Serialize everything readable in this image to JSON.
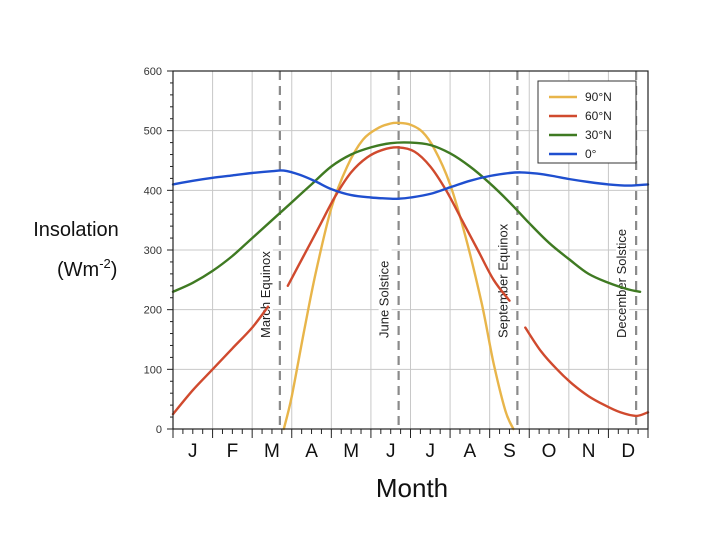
{
  "chart_data": {
    "type": "line",
    "title": "",
    "xlabel": "Month",
    "ylabel": "Insolation",
    "ylabel_units": "(Wm",
    "ylabel_units_exp": "-2",
    "ylabel_units_close": ")",
    "ylim": [
      0,
      600
    ],
    "yticks": [
      "0",
      "100",
      "200",
      "300",
      "400",
      "500",
      "600"
    ],
    "months": [
      "J",
      "F",
      "M",
      "A",
      "M",
      "J",
      "J",
      "A",
      "S",
      "O",
      "N",
      "D"
    ],
    "grid": true,
    "events": [
      {
        "label": "March Equinox",
        "month": 2.7
      },
      {
        "label": "June Solstice",
        "month": 5.7
      },
      {
        "label": "September Equinox",
        "month": 8.7
      },
      {
        "label": "December Solstice",
        "month": 11.7
      }
    ],
    "series": [
      {
        "name": "90°N",
        "color": "#e8b54a",
        "x": [
          2.8,
          3.0,
          3.3,
          3.6,
          4.0,
          4.4,
          4.8,
          5.2,
          5.5,
          5.7,
          6.0,
          6.3,
          6.6,
          7.0,
          7.4,
          7.8,
          8.1,
          8.4,
          8.6
        ],
        "y": [
          0,
          55,
          160,
          260,
          370,
          440,
          485,
          505,
          512,
          513,
          510,
          498,
          470,
          410,
          320,
          210,
          110,
          30,
          0
        ]
      },
      {
        "name": "60°N",
        "color": "#d04a2e",
        "x": [
          0,
          0.5,
          1.0,
          1.5,
          2.0,
          2.4,
          2.9,
          3.3,
          3.7,
          4.1,
          4.5,
          4.9,
          5.3,
          5.7,
          6.1,
          6.5,
          6.9,
          7.3,
          7.7,
          8.1,
          8.5,
          8.9,
          9.3,
          9.7,
          10.1,
          10.5,
          10.9,
          11.3,
          11.7,
          12.0
        ],
        "y": [
          25,
          65,
          100,
          135,
          170,
          205,
          240,
          290,
          340,
          390,
          430,
          455,
          468,
          472,
          465,
          440,
          400,
          350,
          300,
          250,
          215,
          170,
          130,
          100,
          75,
          55,
          40,
          28,
          22,
          28
        ],
        "gaps": [
          [
            2.45,
            2.85
          ],
          [
            8.5,
            8.85
          ]
        ]
      },
      {
        "name": "30°N",
        "color": "#3f7a22",
        "x": [
          0,
          0.5,
          1.0,
          1.5,
          2.0,
          2.5,
          3.0,
          3.5,
          4.0,
          4.5,
          5.0,
          5.5,
          6.0,
          6.5,
          7.0,
          7.5,
          8.0,
          8.5,
          9.0,
          9.5,
          10.0,
          10.5,
          11.0,
          11.5,
          11.8
        ],
        "y": [
          230,
          245,
          265,
          290,
          320,
          350,
          380,
          410,
          440,
          460,
          472,
          479,
          480,
          476,
          462,
          440,
          412,
          380,
          345,
          312,
          285,
          260,
          245,
          234,
          230
        ]
      },
      {
        "name": "0°",
        "color": "#1f4fcf",
        "x": [
          0,
          0.5,
          1.0,
          1.5,
          2.0,
          2.5,
          2.8,
          3.2,
          3.6,
          4.0,
          4.5,
          5.0,
          5.5,
          5.7,
          6.0,
          6.5,
          7.0,
          7.5,
          8.0,
          8.5,
          8.8,
          9.2,
          9.6,
          10.0,
          10.5,
          11.0,
          11.5,
          12.0
        ],
        "y": [
          410,
          416,
          421,
          425,
          429,
          432,
          433,
          426,
          415,
          402,
          392,
          388,
          386,
          386,
          388,
          394,
          405,
          416,
          424,
          429,
          430,
          428,
          424,
          419,
          414,
          410,
          408,
          410
        ]
      }
    ]
  }
}
